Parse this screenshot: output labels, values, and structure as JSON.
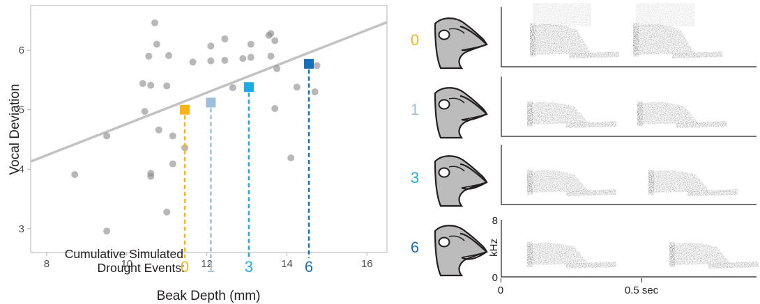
{
  "chart_data": {
    "type": "scatter",
    "xlabel": "Beak Depth (mm)",
    "ylabel": "Vocal Deviation",
    "xlim": [
      7.6,
      16.5
    ],
    "ylim": [
      2.6,
      6.75
    ],
    "xticks": [
      "8",
      "10",
      "12",
      "14",
      "16"
    ],
    "yticks": [
      "3",
      "4",
      "5",
      "6"
    ],
    "grid": false,
    "points": [
      {
        "x": 8.7,
        "y": 3.91
      },
      {
        "x": 9.5,
        "y": 4.56
      },
      {
        "x": 9.5,
        "y": 2.96
      },
      {
        "x": 10.4,
        "y": 5.44
      },
      {
        "x": 10.45,
        "y": 4.97
      },
      {
        "x": 10.55,
        "y": 5.9
      },
      {
        "x": 10.6,
        "y": 5.41
      },
      {
        "x": 10.6,
        "y": 3.93
      },
      {
        "x": 10.6,
        "y": 3.88
      },
      {
        "x": 10.7,
        "y": 6.46
      },
      {
        "x": 10.75,
        "y": 6.1
      },
      {
        "x": 10.8,
        "y": 4.66
      },
      {
        "x": 11.0,
        "y": 5.4
      },
      {
        "x": 11.0,
        "y": 3.28
      },
      {
        "x": 11.05,
        "y": 5.91
      },
      {
        "x": 11.15,
        "y": 4.09
      },
      {
        "x": 11.15,
        "y": 4.56
      },
      {
        "x": 11.45,
        "y": 4.36
      },
      {
        "x": 11.65,
        "y": 5.8
      },
      {
        "x": 12.1,
        "y": 6.07
      },
      {
        "x": 12.1,
        "y": 5.82
      },
      {
        "x": 12.45,
        "y": 6.19
      },
      {
        "x": 12.45,
        "y": 5.83
      },
      {
        "x": 12.65,
        "y": 5.37
      },
      {
        "x": 12.9,
        "y": 5.86
      },
      {
        "x": 13.1,
        "y": 6.1
      },
      {
        "x": 13.1,
        "y": 5.88
      },
      {
        "x": 13.55,
        "y": 6.25
      },
      {
        "x": 13.6,
        "y": 6.28
      },
      {
        "x": 13.6,
        "y": 5.9
      },
      {
        "x": 13.7,
        "y": 6.16
      },
      {
        "x": 13.7,
        "y": 5.02
      },
      {
        "x": 13.75,
        "y": 5.69
      },
      {
        "x": 14.1,
        "y": 4.19
      },
      {
        "x": 14.25,
        "y": 5.38
      },
      {
        "x": 14.7,
        "y": 5.3
      },
      {
        "x": 14.75,
        "y": 5.74
      }
    ],
    "trend_line": {
      "x": [
        7.6,
        16.5
      ],
      "y": [
        4.13,
        6.47
      ]
    },
    "simulated": [
      {
        "label": "0",
        "x": 11.45,
        "y": 5.0,
        "color": "#f5b519"
      },
      {
        "label": "1",
        "x": 12.1,
        "y": 5.12,
        "color": "#9dbfdb"
      },
      {
        "label": "3",
        "x": 13.05,
        "y": 5.38,
        "color": "#1eaae3"
      },
      {
        "label": "6",
        "x": 14.55,
        "y": 5.77,
        "color": "#1570b7"
      }
    ],
    "annotation_lines": [
      "Cumulative Simulated",
      "Drought Events:"
    ]
  },
  "sonogram_panel": {
    "rows": [
      {
        "label": "0",
        "color": "#f5b519"
      },
      {
        "label": "1",
        "color": "#9dbfdb"
      },
      {
        "label": "3",
        "color": "#1eaae3"
      },
      {
        "label": "6",
        "color": "#1570b7"
      }
    ],
    "ylabel": "kHz",
    "y_ticks": [
      "8",
      "0"
    ],
    "x_ticks": [
      "0",
      "0.5 sec"
    ]
  },
  "colors": {
    "point": "#8c8c8c",
    "trend": "#c2c2c2",
    "axis_frame": "#b3b3b3",
    "text": "#231f20",
    "sonogram_ink": "#3a3a3a",
    "head_fill": "#bcbcbc"
  }
}
